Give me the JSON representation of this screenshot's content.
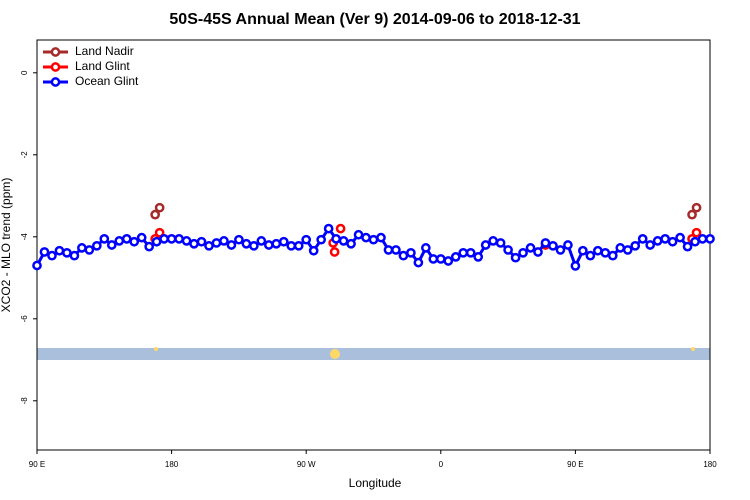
{
  "chart_data": {
    "type": "line",
    "title": "50S-45S Annual Mean (Ver 9)   2014-09-06 to 2018-12-31",
    "xlabel": "Longitude",
    "ylabel": "XCO2 - MLO trend (ppm)",
    "xlim": [
      90,
      540
    ],
    "xticks": [
      {
        "value": 90,
        "label": "90 E"
      },
      180,
      {
        "value": 270,
        "label": "90 W"
      },
      {
        "value": 360,
        "label": "0"
      },
      {
        "value": 450,
        "label": "90 E"
      },
      {
        "value": 540,
        "label": "180"
      }
    ],
    "ylim": [
      -9.2,
      0.8
    ],
    "yticks": [
      0,
      -2,
      -4,
      -6,
      -8
    ],
    "legend": "upper left",
    "series": [
      {
        "name": "Land Nadir",
        "color": "#a52a2a",
        "line": false,
        "x": [
          169,
          172,
          528,
          531
        ],
        "values": [
          -3.46,
          -3.29,
          -3.46,
          -3.29
        ]
      },
      {
        "name": "Land Glint",
        "color": "#ff0000",
        "line": false,
        "x": [
          169,
          172,
          288,
          289,
          293,
          430,
          528,
          531
        ],
        "values": [
          -4.05,
          -3.9,
          -4.15,
          -4.37,
          -3.8,
          -4.2,
          -4.05,
          -3.9
        ]
      },
      {
        "name": "Ocean Glint",
        "color": "#0000ff",
        "line": true,
        "x": [
          90,
          95,
          100,
          105,
          110,
          115,
          120,
          125,
          130,
          135,
          140,
          145,
          150,
          155,
          160,
          165,
          170,
          175,
          180,
          185,
          190,
          195,
          200,
          205,
          210,
          215,
          220,
          225,
          230,
          235,
          240,
          245,
          250,
          255,
          260,
          265,
          270,
          275,
          280,
          285,
          290,
          295,
          300,
          305,
          310,
          315,
          320,
          325,
          330,
          335,
          340,
          345,
          350,
          355,
          360,
          365,
          370,
          375,
          380,
          385,
          390,
          395,
          400,
          405,
          410,
          415,
          420,
          425,
          430,
          435,
          440,
          445,
          450,
          455,
          460,
          465,
          470,
          475,
          480,
          485,
          490,
          495,
          500,
          505,
          510,
          515,
          520,
          525,
          530,
          535,
          540
        ],
        "values": [
          -4.7,
          -4.37,
          -4.46,
          -4.34,
          -4.39,
          -4.46,
          -4.27,
          -4.32,
          -4.22,
          -4.05,
          -4.2,
          -4.1,
          -4.05,
          -4.12,
          -4.02,
          -4.24,
          -4.12,
          -4.05,
          -4.05,
          -4.05,
          -4.1,
          -4.17,
          -4.12,
          -4.22,
          -4.15,
          -4.1,
          -4.2,
          -4.07,
          -4.17,
          -4.22,
          -4.1,
          -4.2,
          -4.17,
          -4.12,
          -4.22,
          -4.22,
          -4.07,
          -4.34,
          -4.07,
          -3.8,
          -4.05,
          -4.1,
          -4.17,
          -3.95,
          -4.02,
          -4.07,
          -4.02,
          -4.32,
          -4.32,
          -4.46,
          -4.39,
          -4.63,
          -4.27,
          -4.54,
          -4.54,
          -4.59,
          -4.49,
          -4.39,
          -4.39,
          -4.49,
          -4.2,
          -4.1,
          -4.15,
          -4.32,
          -4.51,
          -4.39,
          -4.27,
          -4.37,
          -4.15,
          -4.22,
          -4.32,
          -4.2,
          -4.71,
          -4.34,
          -4.46,
          -4.34,
          -4.39,
          -4.46,
          -4.27,
          -4.32,
          -4.22,
          -4.05,
          -4.2,
          -4.1,
          -4.05,
          -4.12,
          -4.02,
          -4.24,
          -4.12,
          -4.05,
          -4.05
        ]
      }
    ]
  }
}
